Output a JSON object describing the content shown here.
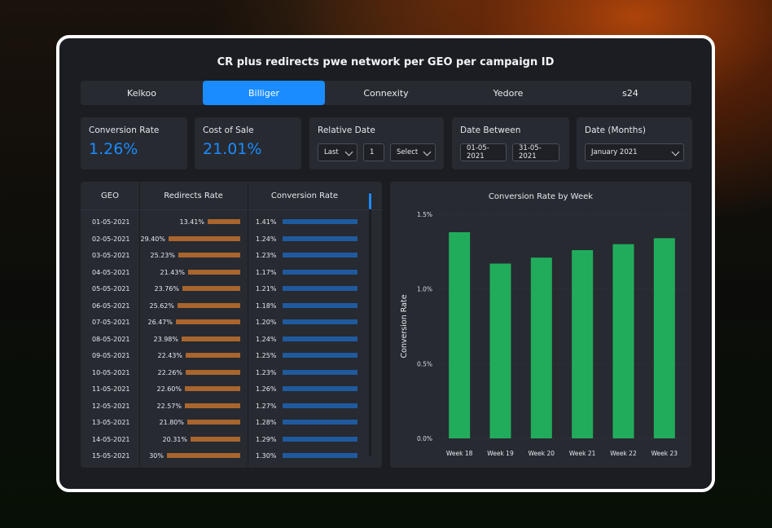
{
  "title": "CR plus redirects pwe network per GEO per campaign ID",
  "tabs": [
    "Kelkoo",
    "Billiger",
    "Connexity",
    "Yedore",
    "s24"
  ],
  "active_tab": "Billiger",
  "kpis": {
    "conversion_rate": {
      "label": "Conversion Rate",
      "value": "1.26%"
    },
    "cost_of_sale": {
      "label": "Cost of Sale",
      "value": "21.01%"
    }
  },
  "filters": {
    "relative_date": {
      "label": "Relative Date",
      "mode": "Last",
      "count": "1",
      "unit": "Select"
    },
    "date_between": {
      "label": "Date Between",
      "from": "01-05-2021",
      "to": "31-05-2021"
    },
    "date_months": {
      "label": "Date (Months)",
      "value": "January 2021"
    }
  },
  "table": {
    "headers": {
      "geo": "GEO",
      "redirects": "Redirects Rate",
      "conversion": "Conversion Rate"
    },
    "rows": [
      {
        "date": "01-05-2021",
        "redirects": "13.41%",
        "redirects_value": 13.41,
        "conversion": "1.41%"
      },
      {
        "date": "02-05-2021",
        "redirects": "29.40%",
        "redirects_value": 29.4,
        "conversion": "1.24%"
      },
      {
        "date": "03-05-2021",
        "redirects": "25.23%",
        "redirects_value": 25.23,
        "conversion": "1.23%"
      },
      {
        "date": "04-05-2021",
        "redirects": "21.43%",
        "redirects_value": 21.43,
        "conversion": "1.17%"
      },
      {
        "date": "05-05-2021",
        "redirects": "23.76%",
        "redirects_value": 23.76,
        "conversion": "1.21%"
      },
      {
        "date": "06-05-2021",
        "redirects": "25.62%",
        "redirects_value": 25.62,
        "conversion": "1.18%"
      },
      {
        "date": "07-05-2021",
        "redirects": "26.47%",
        "redirects_value": 26.47,
        "conversion": "1.20%"
      },
      {
        "date": "08-05-2021",
        "redirects": "23.98%",
        "redirects_value": 23.98,
        "conversion": "1.24%"
      },
      {
        "date": "09-05-2021",
        "redirects": "22.43%",
        "redirects_value": 22.43,
        "conversion": "1.25%"
      },
      {
        "date": "10-05-2021",
        "redirects": "22.26%",
        "redirects_value": 22.26,
        "conversion": "1.23%"
      },
      {
        "date": "11-05-2021",
        "redirects": "22.60%",
        "redirects_value": 22.6,
        "conversion": "1.26%"
      },
      {
        "date": "12-05-2021",
        "redirects": "22.57%",
        "redirects_value": 22.57,
        "conversion": "1.27%"
      },
      {
        "date": "13-05-2021",
        "redirects": "21.80%",
        "redirects_value": 21.8,
        "conversion": "1.28%"
      },
      {
        "date": "14-05-2021",
        "redirects": "20.31%",
        "redirects_value": 20.31,
        "conversion": "1.29%"
      },
      {
        "date": "15-05-2021",
        "redirects": "30%",
        "redirects_value": 30,
        "conversion": "1.30%"
      }
    ]
  },
  "chart_data": {
    "type": "bar",
    "title": "Conversion Rate by Week",
    "xlabel": "",
    "ylabel": "Conversion Rate",
    "categories": [
      "Week 18",
      "Week 19",
      "Week 20",
      "Week 21",
      "Week 22",
      "Week 23"
    ],
    "values": [
      1.38,
      1.17,
      1.21,
      1.26,
      1.3,
      1.34
    ],
    "ylim": [
      0,
      1.5
    ],
    "yticks": [
      "0.0%",
      "0.5%",
      "1.0%",
      "1.5%"
    ],
    "ytick_values": [
      0,
      0.5,
      1.0,
      1.5
    ],
    "grid": true,
    "color": "#21ac5c"
  },
  "colors": {
    "accent": "#1a8cff",
    "redirects_bar": "#a9652e",
    "conversion_bar": "#1f5a9e",
    "chart_bar": "#21ac5c"
  }
}
